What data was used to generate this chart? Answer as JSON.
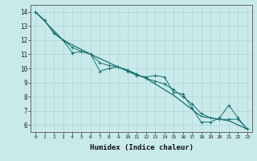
{
  "xlabel": "Humidex (Indice chaleur)",
  "bg_color": "#c8eaea",
  "grid_color": "#b8d8d8",
  "line_color": "#1a7070",
  "xlim": [
    -0.5,
    23.5
  ],
  "ylim": [
    5.5,
    14.5
  ],
  "yticks": [
    6,
    7,
    8,
    9,
    10,
    11,
    12,
    13,
    14
  ],
  "xticks": [
    0,
    1,
    2,
    3,
    4,
    5,
    6,
    7,
    8,
    9,
    10,
    11,
    12,
    13,
    14,
    15,
    16,
    17,
    18,
    19,
    20,
    21,
    22,
    23
  ],
  "series1": [
    [
      0,
      14.0
    ],
    [
      1,
      13.4
    ],
    [
      2,
      12.5
    ],
    [
      3,
      12.0
    ],
    [
      4,
      11.1
    ],
    [
      5,
      11.2
    ],
    [
      6,
      11.0
    ],
    [
      7,
      9.8
    ],
    [
      8,
      10.0
    ],
    [
      9,
      10.1
    ],
    [
      10,
      9.8
    ],
    [
      11,
      9.5
    ],
    [
      12,
      9.4
    ],
    [
      13,
      9.5
    ],
    [
      14,
      9.4
    ],
    [
      15,
      8.3
    ],
    [
      16,
      8.2
    ],
    [
      17,
      7.2
    ],
    [
      18,
      6.2
    ],
    [
      19,
      6.2
    ],
    [
      20,
      6.5
    ],
    [
      21,
      7.4
    ],
    [
      22,
      6.5
    ],
    [
      23,
      5.7
    ]
  ],
  "series2": [
    [
      0,
      14.0
    ],
    [
      1,
      13.4
    ],
    [
      2,
      12.5
    ],
    [
      3,
      12.0
    ],
    [
      4,
      11.5
    ],
    [
      5,
      11.2
    ],
    [
      6,
      11.0
    ],
    [
      7,
      10.4
    ],
    [
      8,
      10.2
    ],
    [
      9,
      10.1
    ],
    [
      10,
      9.9
    ],
    [
      11,
      9.6
    ],
    [
      12,
      9.3
    ],
    [
      13,
      9.1
    ],
    [
      14,
      8.9
    ],
    [
      15,
      8.5
    ],
    [
      16,
      8.0
    ],
    [
      17,
      7.5
    ],
    [
      18,
      6.8
    ],
    [
      19,
      6.5
    ],
    [
      20,
      6.4
    ],
    [
      21,
      6.4
    ],
    [
      22,
      6.4
    ],
    [
      23,
      5.7
    ]
  ],
  "series3": [
    [
      0,
      14.0
    ],
    [
      3,
      12.0
    ],
    [
      6,
      11.0
    ],
    [
      9,
      10.1
    ],
    [
      12,
      9.3
    ],
    [
      15,
      8.1
    ],
    [
      18,
      6.6
    ],
    [
      21,
      6.3
    ],
    [
      23,
      5.7
    ]
  ]
}
